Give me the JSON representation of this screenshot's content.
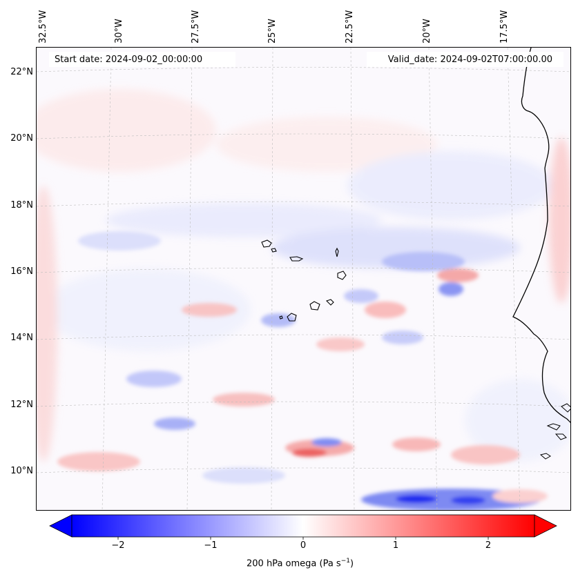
{
  "map": {
    "start_label": "Start date: 2024-09-02_00:00:00",
    "valid_label": "Valid_date: 2024-09-02T07:00:00.00",
    "longitude_labels": [
      "32.5°W",
      "30°W",
      "27.5°W",
      "25°W",
      "22.5°W",
      "20°W",
      "17.5°W"
    ],
    "latitude_labels": [
      "22°N",
      "20°N",
      "18°N",
      "16°N",
      "14°N",
      "12°N",
      "10°N"
    ]
  },
  "colorbar": {
    "tick_labels": [
      "−2",
      "−1",
      "0",
      "1",
      "2"
    ],
    "tick_values": [
      -2,
      -1,
      0,
      1,
      2
    ],
    "range": [
      -2.5,
      2.5
    ],
    "title_text": "200 hPa omega (Pa s",
    "title_sup": "−1",
    "title_close": ")",
    "colors": {
      "negative": "#0000ff",
      "neutral": "#ffffff",
      "positive": "#ff0000"
    }
  }
}
